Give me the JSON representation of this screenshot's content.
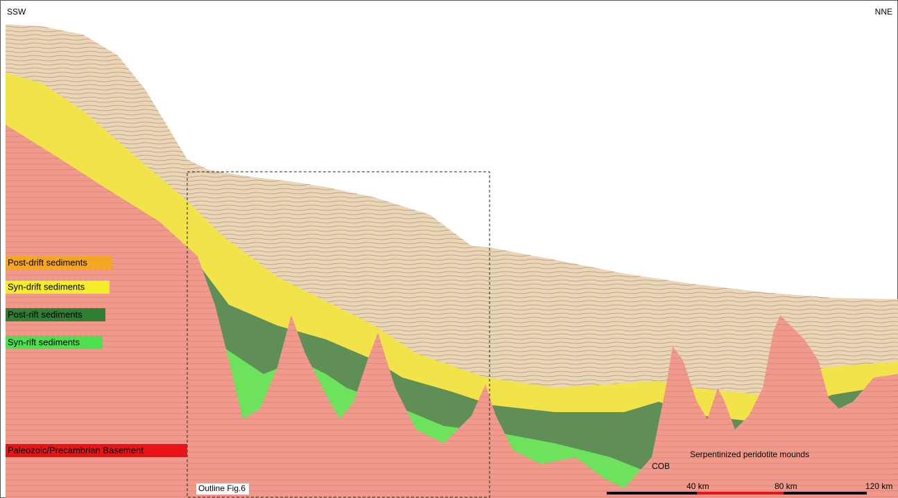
{
  "header": {
    "left": "SSW",
    "right": "NNE"
  },
  "legend": {
    "items": [
      {
        "label": "Post-drift sediments"
      },
      {
        "label": "Syn-drift sediments"
      },
      {
        "label": "Post-rift sediments"
      },
      {
        "label": "Syn-rift sediments"
      },
      {
        "label": "Paleozoic/Precambrian Basement"
      }
    ]
  },
  "annotations": {
    "outline": "Outline Fig.6",
    "cob": "COB",
    "mounds": "Serpentinized peridotite mounds"
  },
  "scale_bar": {
    "labels": [
      "40 km",
      "80 km",
      "120 km"
    ]
  }
}
